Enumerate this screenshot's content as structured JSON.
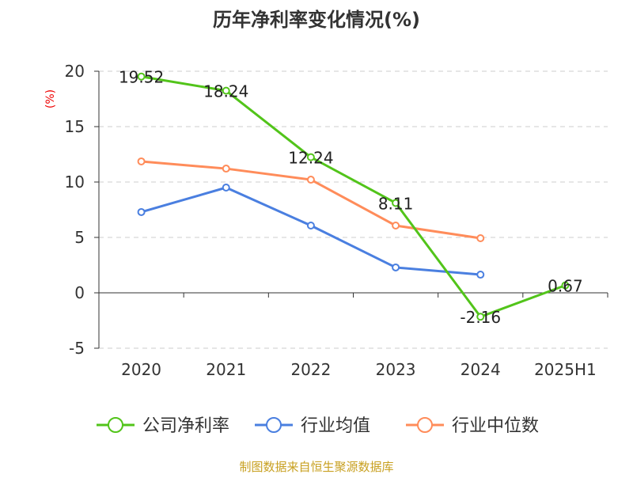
{
  "chart_data": {
    "type": "line",
    "title": "历年净利率变化情况(%)",
    "ylabel": "(%)",
    "xlabel": "",
    "categories": [
      "2020",
      "2021",
      "2022",
      "2023",
      "2024",
      "2025H1"
    ],
    "ylim": [
      -5,
      20
    ],
    "yticks": [
      -5,
      0,
      5,
      10,
      15,
      20
    ],
    "grid": true,
    "legend_position": "bottom",
    "series": [
      {
        "name": "公司净利率",
        "color": "#52c41a",
        "values": [
          19.52,
          18.24,
          12.24,
          8.11,
          -2.16,
          0.67
        ],
        "labels": [
          "19.52",
          "18.24",
          "12.24",
          "8.11",
          "-2.16",
          "0.67"
        ]
      },
      {
        "name": "行业均值",
        "color": "#4a7fe0",
        "values": [
          7.29,
          9.5,
          6.07,
          2.29,
          1.64,
          null
        ]
      },
      {
        "name": "行业中位数",
        "color": "#ff8c5a",
        "values": [
          11.86,
          11.21,
          10.21,
          6.07,
          4.93,
          null
        ]
      }
    ]
  },
  "footer": {
    "source": "制图数据来自恒生聚源数据库"
  }
}
